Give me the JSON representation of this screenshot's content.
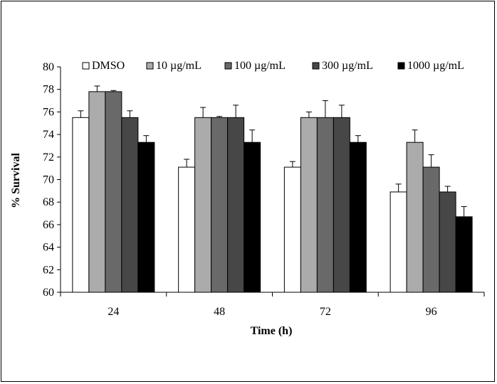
{
  "chart_data": {
    "type": "bar",
    "title": "",
    "xlabel": "Time (h)",
    "ylabel": "% Survival",
    "categories": [
      "24",
      "48",
      "72",
      "96"
    ],
    "ylim": [
      60,
      80
    ],
    "yticks": [
      60,
      62,
      64,
      66,
      68,
      70,
      72,
      74,
      76,
      78,
      80
    ],
    "legend_position": "top",
    "grid": false,
    "series": [
      {
        "name": "DMSO",
        "color": "#ffffff",
        "values": [
          75.5,
          71.1,
          71.1,
          68.9
        ],
        "errors": [
          0.6,
          0.7,
          0.5,
          0.7
        ]
      },
      {
        "name": "10 µg/mL",
        "color": "#ababab",
        "values": [
          77.8,
          75.5,
          75.5,
          73.3
        ],
        "errors": [
          0.5,
          0.9,
          0.5,
          1.1
        ]
      },
      {
        "name": "100 µg/mL",
        "color": "#696969",
        "values": [
          77.8,
          75.5,
          75.5,
          71.1
        ],
        "errors": [
          0.1,
          0.1,
          1.5,
          1.1
        ]
      },
      {
        "name": "300 µg/mL",
        "color": "#474747",
        "values": [
          75.5,
          75.5,
          75.5,
          68.9
        ],
        "errors": [
          0.6,
          1.1,
          1.1,
          0.5
        ]
      },
      {
        "name": "1000 µg/mL",
        "color": "#000000",
        "values": [
          73.3,
          73.3,
          73.3,
          66.7
        ],
        "errors": [
          0.6,
          1.1,
          0.6,
          0.9
        ]
      }
    ]
  }
}
